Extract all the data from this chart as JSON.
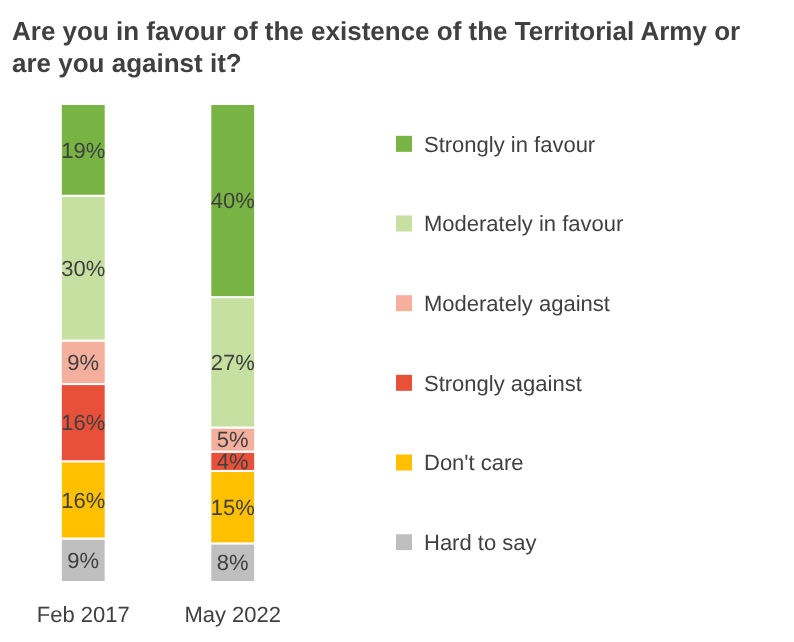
{
  "chart_data": {
    "type": "bar",
    "stacked": true,
    "title": "Are you in favour of the existence of the Territorial Army or are you against it?",
    "categories": [
      "Feb 2017",
      "May 2022"
    ],
    "series": [
      {
        "name": "Hard to say",
        "color": "#bfbfbf",
        "values": [
          9,
          8
        ],
        "value_labels": [
          "9%",
          "8%"
        ]
      },
      {
        "name": "Don't care",
        "color": "#ffc000",
        "values": [
          16,
          15
        ],
        "value_labels": [
          "16%",
          "15%"
        ]
      },
      {
        "name": "Strongly against",
        "color": "#e8503a",
        "values": [
          16,
          4
        ],
        "value_labels": [
          "16%",
          "4%"
        ]
      },
      {
        "name": "Moderately against",
        "color": "#f4b09c",
        "values": [
          9,
          5
        ],
        "value_labels": [
          "9%",
          "5%"
        ]
      },
      {
        "name": "Moderately in favour",
        "color": "#c5e0a0",
        "values": [
          30,
          27
        ],
        "value_labels": [
          "30%",
          "27%"
        ]
      },
      {
        "name": "Strongly in favour",
        "color": "#78b443",
        "values": [
          19,
          40
        ],
        "value_labels": [
          "19%",
          "40%"
        ]
      }
    ],
    "legend": "right"
  }
}
